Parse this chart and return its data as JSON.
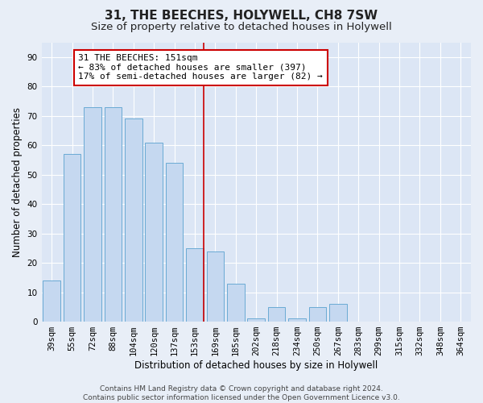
{
  "title": "31, THE BEECHES, HOLYWELL, CH8 7SW",
  "subtitle": "Size of property relative to detached houses in Holywell",
  "xlabel": "Distribution of detached houses by size in Holywell",
  "ylabel": "Number of detached properties",
  "footer_line1": "Contains HM Land Registry data © Crown copyright and database right 2024.",
  "footer_line2": "Contains public sector information licensed under the Open Government Licence v3.0.",
  "bar_labels": [
    "39sqm",
    "55sqm",
    "72sqm",
    "88sqm",
    "104sqm",
    "120sqm",
    "137sqm",
    "153sqm",
    "169sqm",
    "185sqm",
    "202sqm",
    "218sqm",
    "234sqm",
    "250sqm",
    "267sqm",
    "283sqm",
    "299sqm",
    "315sqm",
    "332sqm",
    "348sqm",
    "364sqm"
  ],
  "bar_values": [
    14,
    57,
    73,
    73,
    69,
    61,
    54,
    25,
    24,
    13,
    1,
    5,
    1,
    5,
    6,
    0,
    0,
    0,
    0,
    0,
    0
  ],
  "bar_color": "#c5d8f0",
  "bar_edge_color": "#6aaad4",
  "vline_index": 7,
  "vline_color": "#cc0000",
  "ylim": [
    0,
    95
  ],
  "yticks": [
    0,
    10,
    20,
    30,
    40,
    50,
    60,
    70,
    80,
    90
  ],
  "annotation_text_line1": "31 THE BEECHES: 151sqm",
  "annotation_text_line2": "← 83% of detached houses are smaller (397)",
  "annotation_text_line3": "17% of semi-detached houses are larger (82) →",
  "annotation_box_facecolor": "#ffffff",
  "annotation_box_edgecolor": "#cc0000",
  "background_color": "#e8eef7",
  "plot_bg_color": "#dce6f5",
  "grid_color": "#ffffff",
  "title_fontsize": 11,
  "subtitle_fontsize": 9.5,
  "axis_label_fontsize": 8.5,
  "tick_fontsize": 7.5,
  "annotation_fontsize": 8,
  "footer_fontsize": 6.5
}
